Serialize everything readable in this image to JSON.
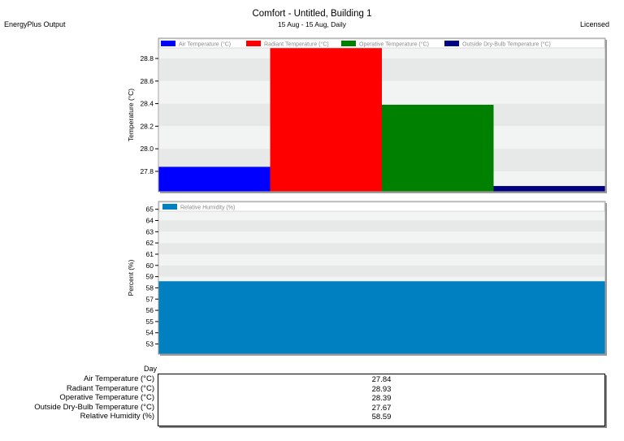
{
  "header": {
    "app_label": "EnergyPlus Output",
    "license_label": "Licensed",
    "title": "Comfort - Untitled, Building 1",
    "subtitle": "15 Aug - 15 Aug, Daily"
  },
  "chart_data": [
    {
      "type": "bar",
      "ylabel": "Temperature (°C)",
      "ylim": [
        27.62,
        28.98
      ],
      "yticks": [
        "27.8",
        "28.0",
        "28.2",
        "28.4",
        "28.6",
        "28.8"
      ],
      "legend_position": "top",
      "series": [
        {
          "name": "Air Temperature (°C)",
          "value": 27.84,
          "color": "#0000ff"
        },
        {
          "name": "Radiant Temperature (°C)",
          "value": 28.93,
          "color": "#ff0000"
        },
        {
          "name": "Operative Temperature (°C)",
          "value": 28.39,
          "color": "#008000"
        },
        {
          "name": "Outside Dry-Bulb Temperature (°C)",
          "value": 27.67,
          "color": "#000080"
        }
      ]
    },
    {
      "type": "bar",
      "ylabel": "Percent (%)",
      "xlabel": "Day",
      "ylim": [
        52.1,
        65.7
      ],
      "yticks": [
        "53",
        "54",
        "55",
        "56",
        "57",
        "58",
        "59",
        "60",
        "61",
        "62",
        "63",
        "64",
        "65"
      ],
      "legend_position": "top-left",
      "series": [
        {
          "name": "Relative Humidity (%)",
          "value": 58.59,
          "color": "#0080c0"
        }
      ]
    }
  ],
  "table": {
    "rows": [
      {
        "label": "Air Temperature (°C)",
        "value": "27.84"
      },
      {
        "label": "Radiant Temperature (°C)",
        "value": "28.93"
      },
      {
        "label": "Operative Temperature (°C)",
        "value": "28.39"
      },
      {
        "label": "Outside Dry-Bulb Temperature (°C)",
        "value": "27.67"
      },
      {
        "label": "Relative Humidity (%)",
        "value": "58.59"
      }
    ]
  }
}
